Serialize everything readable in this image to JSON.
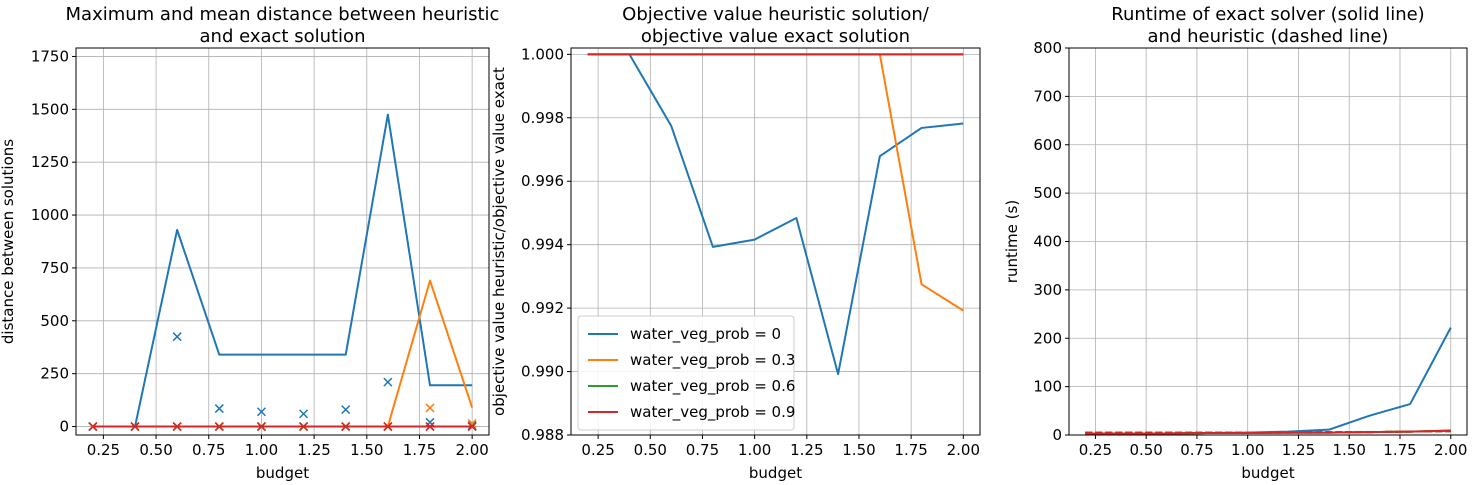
{
  "figure": {
    "background": "#ffffff"
  },
  "chart_data": [
    {
      "type": "line",
      "title": [
        "Maximum and mean distance between heuristic",
        "and exact solution"
      ],
      "xlabel": "budget",
      "ylabel": "distance between solutions",
      "xlim": [
        0.12,
        2.08
      ],
      "ylim": [
        -40,
        1790
      ],
      "xticks": [
        0.25,
        0.5,
        0.75,
        1.0,
        1.25,
        1.5,
        1.75,
        2.0
      ],
      "xtick_labels": [
        "0.25",
        "0.50",
        "0.75",
        "1.00",
        "1.25",
        "1.50",
        "1.75",
        "2.00"
      ],
      "yticks": [
        0,
        250,
        500,
        750,
        1000,
        1250,
        1500,
        1750
      ],
      "ytick_labels": [
        "0",
        "250",
        "500",
        "750",
        "1000",
        "1250",
        "1500",
        "1750"
      ],
      "grid": true,
      "x": [
        0.2,
        0.4,
        0.6,
        0.8,
        1.0,
        1.2,
        1.4,
        1.6,
        1.8,
        2.0
      ],
      "series": [
        {
          "color": "#1f77b4",
          "style": "line",
          "values": [
            0,
            0,
            930,
            340,
            340,
            340,
            340,
            1475,
            195,
            195
          ]
        },
        {
          "color": "#1f77b4",
          "style": "marker",
          "values": [
            0,
            0,
            425,
            85,
            70,
            60,
            80,
            210,
            20,
            5
          ]
        },
        {
          "color": "#ff7f0e",
          "style": "line",
          "values": [
            0,
            0,
            0,
            0,
            0,
            0,
            0,
            0,
            690,
            90
          ]
        },
        {
          "color": "#ff7f0e",
          "style": "marker",
          "values": [
            0,
            0,
            0,
            0,
            0,
            0,
            0,
            0,
            88,
            15
          ]
        },
        {
          "color": "#2ca02c",
          "style": "line",
          "values": [
            0,
            0,
            0,
            0,
            0,
            0,
            0,
            0,
            0,
            0
          ]
        },
        {
          "color": "#2ca02c",
          "style": "marker",
          "values": [
            0,
            0,
            0,
            0,
            0,
            0,
            0,
            0,
            0,
            0
          ]
        },
        {
          "color": "#d62728",
          "style": "line",
          "values": [
            0,
            0,
            0,
            0,
            0,
            0,
            0,
            0,
            0,
            0
          ]
        },
        {
          "color": "#d62728",
          "style": "marker",
          "values": [
            0,
            0,
            0,
            0,
            0,
            0,
            0,
            0,
            0,
            0
          ]
        }
      ]
    },
    {
      "type": "line",
      "title": [
        "Objective value heuristic solution/",
        "objective value exact solution"
      ],
      "xlabel": "budget",
      "ylabel": "objective value heuristic/objective value exact",
      "xlim": [
        0.12,
        2.08
      ],
      "ylim": [
        0.988,
        1.0002
      ],
      "xticks": [
        0.25,
        0.5,
        0.75,
        1.0,
        1.25,
        1.5,
        1.75,
        2.0
      ],
      "xtick_labels": [
        "0.25",
        "0.50",
        "0.75",
        "1.00",
        "1.25",
        "1.50",
        "1.75",
        "2.00"
      ],
      "yticks": [
        0.988,
        0.99,
        0.992,
        0.994,
        0.996,
        0.998,
        1.0
      ],
      "ytick_labels": [
        "0.988",
        "0.990",
        "0.992",
        "0.994",
        "0.996",
        "0.998",
        "1.000"
      ],
      "grid": true,
      "legend_position": "lower-left",
      "x": [
        0.2,
        0.4,
        0.6,
        0.8,
        1.0,
        1.2,
        1.4,
        1.6,
        1.8,
        2.0
      ],
      "series": [
        {
          "name": "water_veg_prob = 0",
          "color": "#1f77b4",
          "style": "line",
          "values": [
            1.0,
            1.0,
            0.99775,
            0.99393,
            0.99416,
            0.99484,
            0.98992,
            0.99679,
            0.99768,
            0.99782
          ]
        },
        {
          "name": "water_veg_prob = 0.3",
          "color": "#ff7f0e",
          "style": "line",
          "values": [
            1.0,
            1.0,
            1.0,
            1.0,
            1.0,
            1.0,
            1.0,
            1.0,
            0.99275,
            0.99192
          ]
        },
        {
          "name": "water_veg_prob = 0.6",
          "color": "#2ca02c",
          "style": "line",
          "values": [
            1.0,
            1.0,
            1.0,
            1.0,
            1.0,
            1.0,
            1.0,
            1.0,
            1.0,
            1.0
          ]
        },
        {
          "name": "water_veg_prob = 0.9",
          "color": "#d62728",
          "style": "line",
          "values": [
            1.0,
            1.0,
            1.0,
            1.0,
            1.0,
            1.0,
            1.0,
            1.0,
            1.0,
            1.0
          ]
        }
      ]
    },
    {
      "type": "line",
      "title": [
        "Runtime of exact solver (solid line)",
        "and heuristic (dashed line)"
      ],
      "xlabel": "budget",
      "ylabel": "runtime (s)",
      "xlim": [
        0.12,
        2.08
      ],
      "ylim": [
        0,
        800
      ],
      "xticks": [
        0.25,
        0.5,
        0.75,
        1.0,
        1.25,
        1.5,
        1.75,
        2.0
      ],
      "xtick_labels": [
        "0.25",
        "0.50",
        "0.75",
        "1.00",
        "1.25",
        "1.50",
        "1.75",
        "2.00"
      ],
      "yticks": [
        0,
        100,
        200,
        300,
        400,
        500,
        600,
        700,
        800
      ],
      "ytick_labels": [
        "0",
        "100",
        "200",
        "300",
        "400",
        "500",
        "600",
        "700",
        "800"
      ],
      "grid": true,
      "x": [
        0.2,
        0.4,
        0.6,
        0.8,
        1.0,
        1.2,
        1.4,
        1.6,
        1.8,
        2.0
      ],
      "series": [
        {
          "color": "#1f77b4",
          "style": "line",
          "values": [
            3,
            3,
            3,
            4,
            5,
            7,
            11,
            40,
            64,
            222
          ]
        },
        {
          "color": "#1f77b4",
          "style": "dashed",
          "values": [
            5,
            5,
            5,
            5,
            5,
            5,
            5,
            6,
            7,
            8
          ]
        },
        {
          "color": "#ff7f0e",
          "style": "line",
          "values": [
            3,
            3,
            3,
            4,
            4,
            5,
            5,
            6,
            7,
            9
          ]
        },
        {
          "color": "#ff7f0e",
          "style": "dashed",
          "values": [
            5,
            5,
            5,
            5,
            5,
            5,
            5,
            6,
            7,
            8
          ]
        },
        {
          "color": "#2ca02c",
          "style": "line",
          "values": [
            3,
            3,
            3,
            4,
            4,
            5,
            5,
            6,
            7,
            9
          ]
        },
        {
          "color": "#2ca02c",
          "style": "dashed",
          "values": [
            5,
            5,
            5,
            5,
            5,
            5,
            6,
            6,
            7,
            8
          ]
        },
        {
          "color": "#d62728",
          "style": "line",
          "values": [
            3,
            3,
            3,
            4,
            4,
            5,
            5,
            6,
            7,
            9
          ]
        },
        {
          "color": "#d62728",
          "style": "dashed",
          "values": [
            5,
            5,
            5,
            5,
            5,
            5,
            6,
            6,
            7,
            8
          ]
        }
      ]
    }
  ]
}
